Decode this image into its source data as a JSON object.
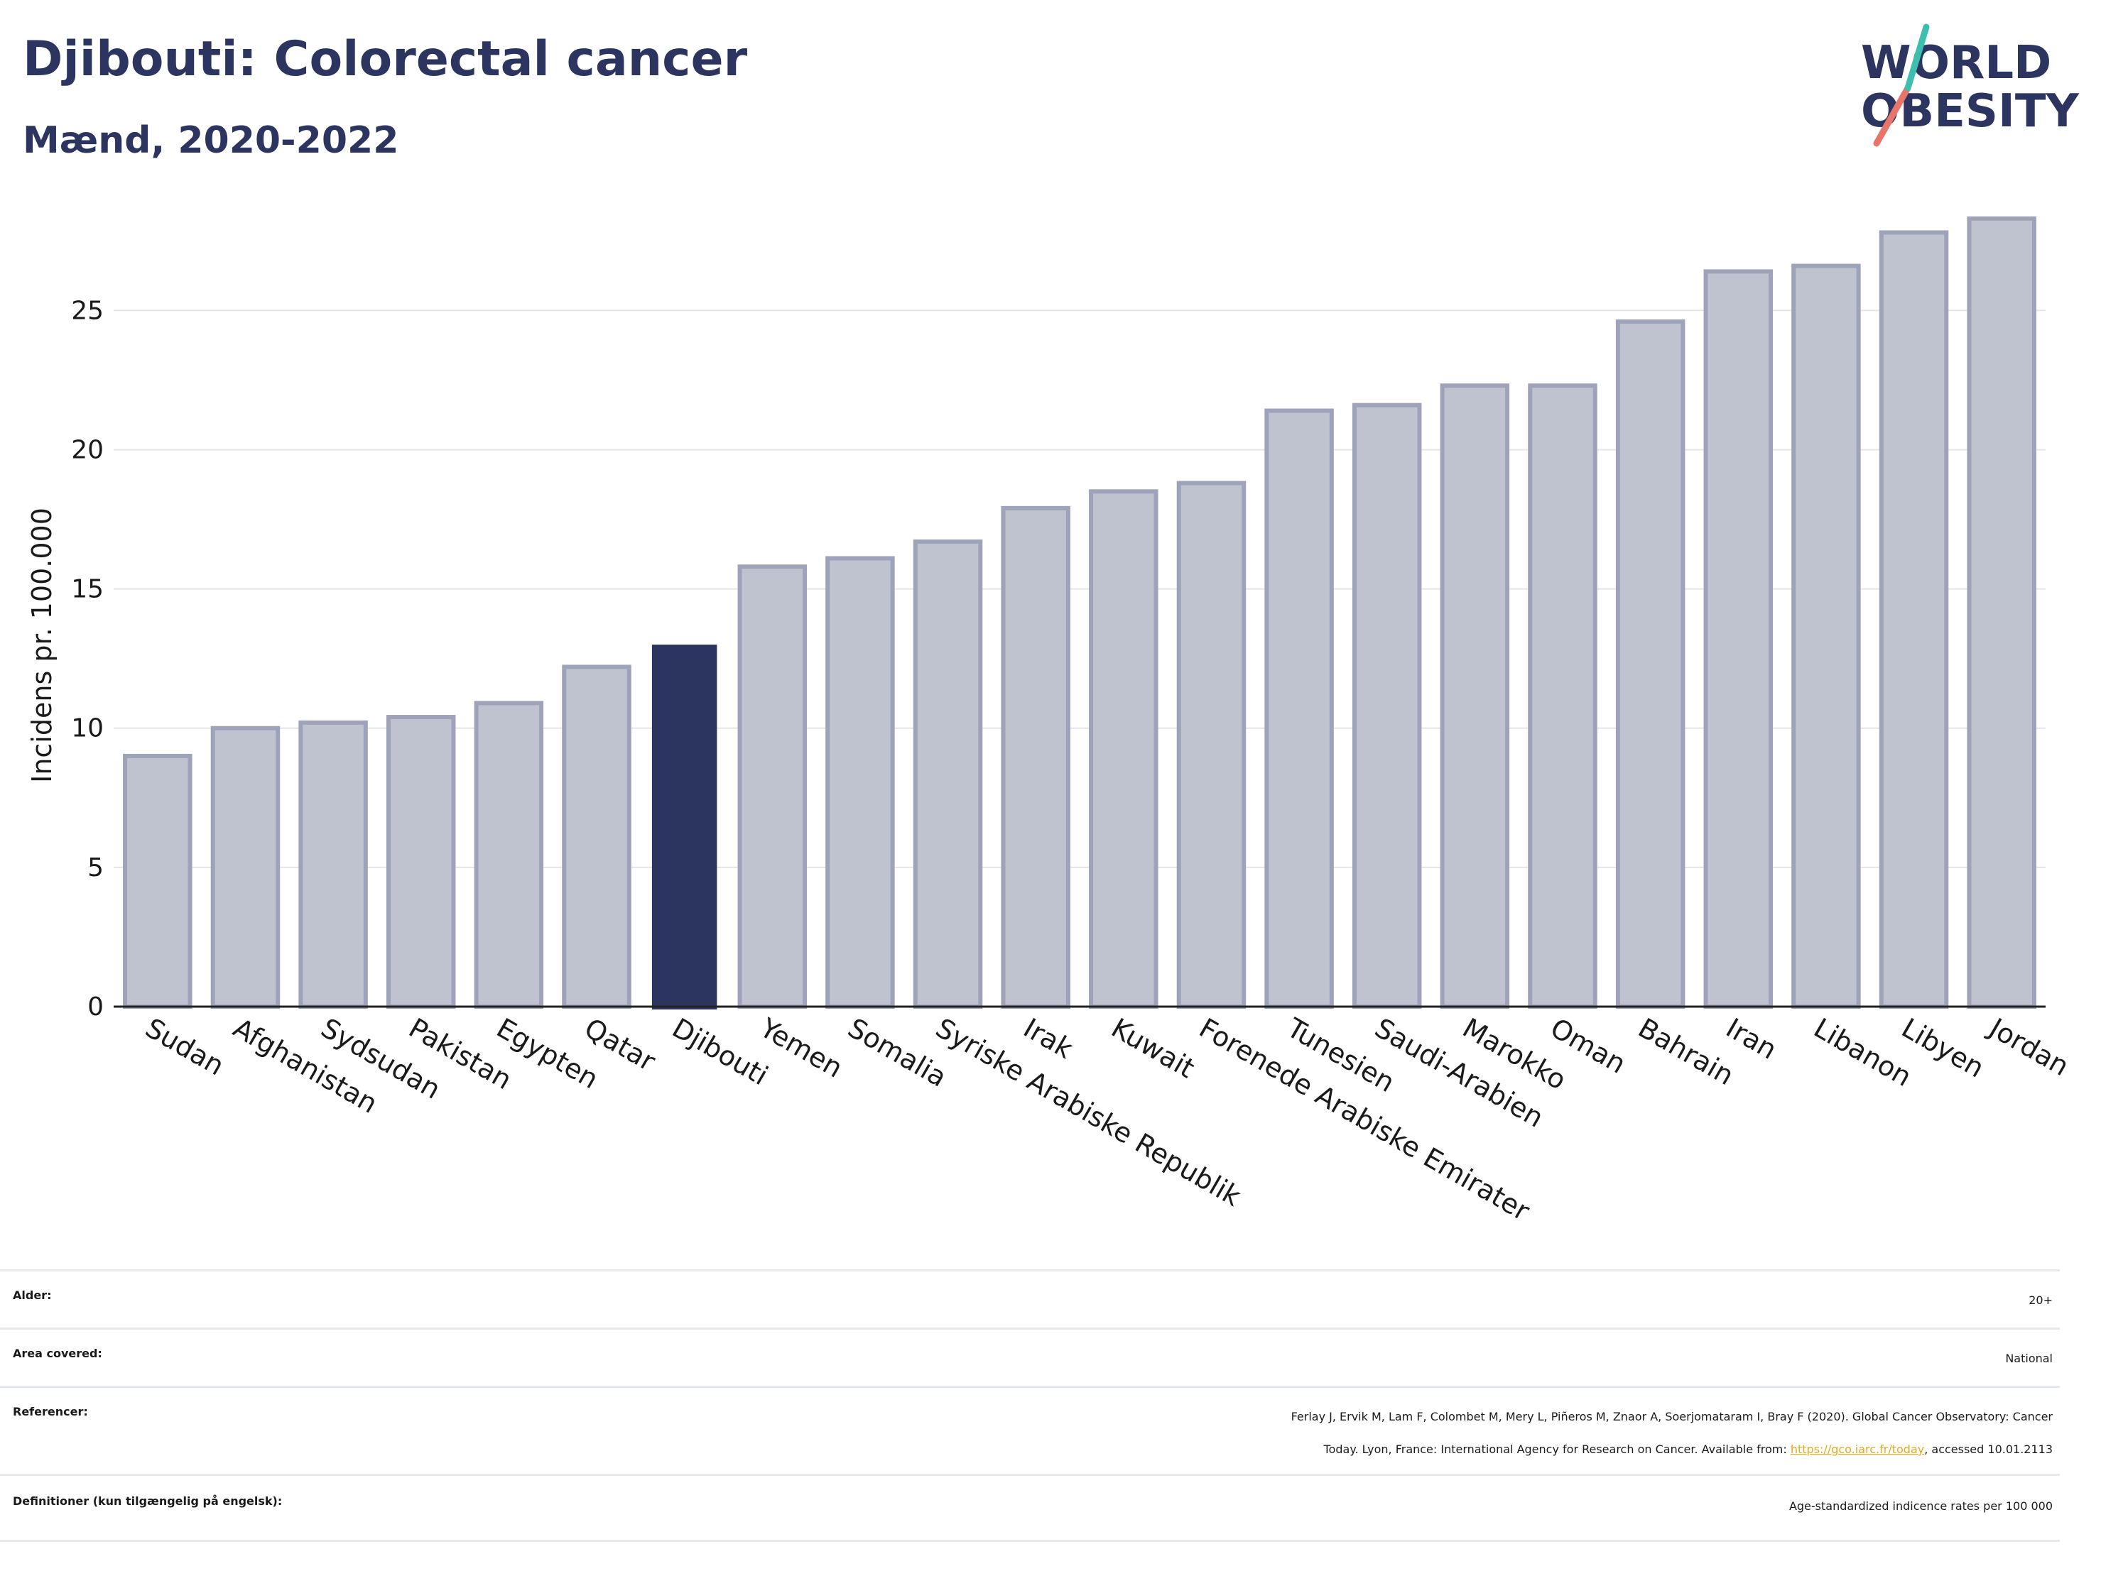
{
  "header": {
    "title": "Djibouti: Colorectal cancer",
    "subtitle": "Mænd, 2020-2022",
    "logo_line1": "WORLD",
    "logo_line2": "OBESITY"
  },
  "chart_data": {
    "type": "bar",
    "ylabel": "Incidens pr. 100.000",
    "ylim": [
      0,
      28.5
    ],
    "yticks": [
      0,
      5,
      10,
      15,
      20,
      25
    ],
    "grid": true,
    "highlight": "Djibouti",
    "colors": {
      "bar": "#bfc2cf",
      "bar_edge": "#9ea3ba",
      "highlight": "#2b3560",
      "grid": "#e6e6e6"
    },
    "categories": [
      "Sudan",
      "Afghanistan",
      "Sydsudan",
      "Pakistan",
      "Egypten",
      "Qatar",
      "Djibouti",
      "Yemen",
      "Somalia",
      "Syriske Arabiske Republik",
      "Irak",
      "Kuwait",
      "Forenede Arabiske Emirater",
      "Tunesien",
      "Saudi-Arabien",
      "Marokko",
      "Oman",
      "Bahrain",
      "Iran",
      "Libanon",
      "Libyen",
      "Jordan"
    ],
    "values": [
      9.0,
      10.0,
      10.2,
      10.4,
      10.9,
      12.2,
      13.0,
      15.8,
      16.1,
      16.7,
      17.9,
      18.5,
      18.8,
      21.4,
      21.6,
      22.3,
      22.3,
      24.6,
      26.4,
      26.6,
      27.8,
      28.3
    ]
  },
  "meta": {
    "rows": [
      {
        "label": "Alder:",
        "value": "20+"
      },
      {
        "label": "Area covered:",
        "value": "National"
      },
      {
        "label": "Referencer:",
        "value_line1": "Ferlay J, Ervik M, Lam F, Colombet M, Mery L, Piñeros M, Znaor A, Soerjomataram I, Bray F (2020). Global Cancer Observatory: Cancer",
        "value_line2_pre": "Today. Lyon, France: International Agency for Research on Cancer. Available from: ",
        "link": "https://gco.iarc.fr/today",
        "value_line2_post": ", accessed 10.01.2113"
      },
      {
        "label": "Definitioner (kun tilgængelig på engelsk):",
        "value": "Age-standardized indicence rates per 100 000"
      }
    ]
  }
}
